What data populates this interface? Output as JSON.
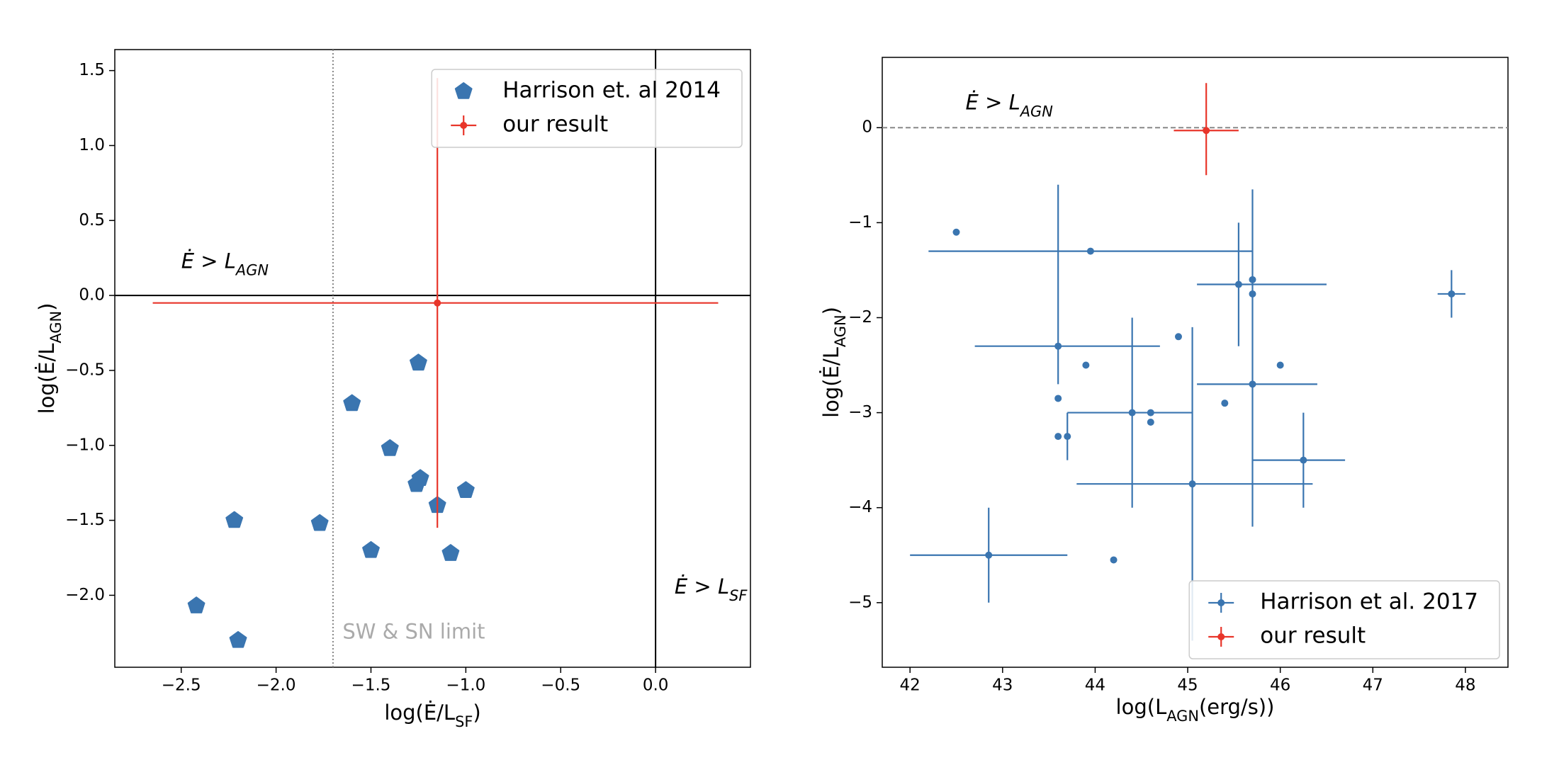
{
  "chart_data": [
    {
      "type": "scatter",
      "xlabel": [
        {
          "text": "log(Ė/L"
        },
        {
          "sub": "SF"
        },
        {
          "text": ")"
        }
      ],
      "ylabel": [
        {
          "text": "log(Ė/L"
        },
        {
          "sub": "AGN"
        },
        {
          "text": ")"
        }
      ],
      "xlim": [
        -2.85,
        0.5
      ],
      "ylim": [
        -2.48,
        1.64
      ],
      "xticks": [
        {
          "value": -2.5,
          "label": "−2.5"
        },
        {
          "value": -2.0,
          "label": "−2.0"
        },
        {
          "value": -1.5,
          "label": "−1.5"
        },
        {
          "value": -1.0,
          "label": "−1.0"
        },
        {
          "value": -0.5,
          "label": "−0.5"
        },
        {
          "value": 0.0,
          "label": "0.0"
        }
      ],
      "yticks": [
        {
          "value": 1.5,
          "label": "1.5"
        },
        {
          "value": 1.0,
          "label": "1.0"
        },
        {
          "value": 0.5,
          "label": "0.5"
        },
        {
          "value": 0.0,
          "label": "0.0"
        },
        {
          "value": -0.5,
          "label": "−0.5"
        },
        {
          "value": -1.0,
          "label": "−1.0"
        },
        {
          "value": -1.5,
          "label": "−1.5"
        },
        {
          "value": -2.0,
          "label": "−2.0"
        }
      ],
      "hlines": [
        {
          "value": 0,
          "color": "#000000",
          "dash": "none"
        }
      ],
      "vlines": [
        {
          "value": 0,
          "color": "#000000",
          "dash": "none"
        },
        {
          "value": -1.7,
          "color": "#888888",
          "dash": "2,3"
        }
      ],
      "annotations": [
        {
          "x": -2.5,
          "y": 0.22,
          "color": "#000000",
          "parts": [
            {
              "text": "Ė > L"
            },
            {
              "sub": "AGN"
            }
          ]
        },
        {
          "x": 0.1,
          "y": -1.95,
          "color": "#000000",
          "parts": [
            {
              "text": "Ė > L"
            },
            {
              "sub": "SF"
            }
          ]
        },
        {
          "x": -1.65,
          "y": -2.25,
          "color": "#aaaaaa",
          "parts": [
            {
              "text": "SW & SN limit"
            }
          ]
        }
      ],
      "legend": "upper right",
      "series": [
        {
          "name": "Harrison et. al 2014",
          "color": "#3a75b0",
          "marker": "pentagon",
          "x": [
            -1.25,
            -1.6,
            -1.4,
            -1.24,
            -1.26,
            -1.0,
            -1.15,
            -1.77,
            -2.22,
            -1.5,
            -1.08,
            -2.42,
            -2.2
          ],
          "values": [
            -0.45,
            -0.72,
            -1.02,
            -1.22,
            -1.26,
            -1.3,
            -1.4,
            -1.52,
            -1.5,
            -1.7,
            -1.72,
            -2.07,
            -2.3
          ]
        },
        {
          "name": "our result",
          "color": "#e8352a",
          "marker": "dot",
          "x": [
            -1.15
          ],
          "values": [
            -0.05
          ],
          "xerr": [
            [
              1.5,
              1.48
            ]
          ],
          "yerr": [
            [
              1.5,
              1.5
            ]
          ]
        }
      ]
    },
    {
      "type": "scatter",
      "xlabel": [
        {
          "text": "log(L"
        },
        {
          "sub": "AGN"
        },
        {
          "text": "(erg/s))"
        }
      ],
      "ylabel": [
        {
          "text": "log(Ė/L"
        },
        {
          "sub": "AGN"
        },
        {
          "text": ")"
        }
      ],
      "xlim": [
        41.7,
        48.46
      ],
      "ylim": [
        -5.68,
        0.74
      ],
      "xticks": [
        42,
        43,
        44,
        45,
        46,
        47,
        48
      ],
      "yticks": [
        0,
        {
          "value": -1,
          "label": "−1"
        },
        {
          "value": -2,
          "label": "−2"
        },
        {
          "value": -3,
          "label": "−3"
        },
        {
          "value": -4,
          "label": "−4"
        },
        {
          "value": -5,
          "label": "−5"
        }
      ],
      "hlines": [
        {
          "value": 0,
          "color": "#888888",
          "dash": "7,4"
        }
      ],
      "vlines": [],
      "annotations": [
        {
          "x": 42.6,
          "y": 0.25,
          "color": "#000000",
          "parts": [
            {
              "text": "Ė > L"
            },
            {
              "sub": "AGN"
            }
          ]
        }
      ],
      "legend": "lower right",
      "series": [
        {
          "name": "Harrison et al. 2017",
          "color": "#3a75b0",
          "marker": "dot",
          "x": [
            42.5,
            43.95,
            45.55,
            45.7,
            45.7,
            47.85,
            43.6,
            43.9,
            44.9,
            46.0,
            45.7,
            43.6,
            45.4,
            44.4,
            44.6,
            44.6,
            43.6,
            43.7,
            46.25,
            45.05,
            42.85,
            44.2
          ],
          "values": [
            -1.1,
            -1.3,
            -1.65,
            -1.6,
            -1.75,
            -1.75,
            -2.3,
            -2.5,
            -2.2,
            -2.5,
            -2.7,
            -2.85,
            -2.9,
            -3.0,
            -3.0,
            -3.1,
            -3.25,
            -3.25,
            -3.5,
            -3.75,
            -4.5,
            -4.55
          ],
          "xerr": [
            null,
            [
              1.75,
              1.75
            ],
            [
              0.45,
              0.95
            ],
            null,
            null,
            [
              0.15,
              0.15
            ],
            [
              0.9,
              1.1
            ],
            null,
            null,
            null,
            [
              0.6,
              0.7
            ],
            null,
            null,
            [
              0.7,
              0.65
            ],
            null,
            null,
            null,
            null,
            [
              0.55,
              0.45
            ],
            [
              1.25,
              1.3
            ],
            [
              0.85,
              0.85
            ],
            null
          ],
          "yerr": [
            null,
            null,
            [
              0.65,
              0.65
            ],
            null,
            null,
            [
              0.25,
              0.25
            ],
            [
              0.4,
              1.7
            ],
            null,
            null,
            null,
            [
              1.5,
              2.05
            ],
            null,
            null,
            [
              1.0,
              1.0
            ],
            null,
            null,
            null,
            [
              0.25,
              0.25
            ],
            [
              0.5,
              0.5
            ],
            [
              1.65,
              1.65
            ],
            [
              0.5,
              0.5
            ],
            null
          ]
        },
        {
          "name": "our result",
          "color": "#e8352a",
          "marker": "dot",
          "x": [
            45.2
          ],
          "values": [
            -0.03
          ],
          "xerr": [
            [
              0.35,
              0.35
            ]
          ],
          "yerr": [
            [
              0.47,
              0.5
            ]
          ]
        }
      ]
    }
  ]
}
